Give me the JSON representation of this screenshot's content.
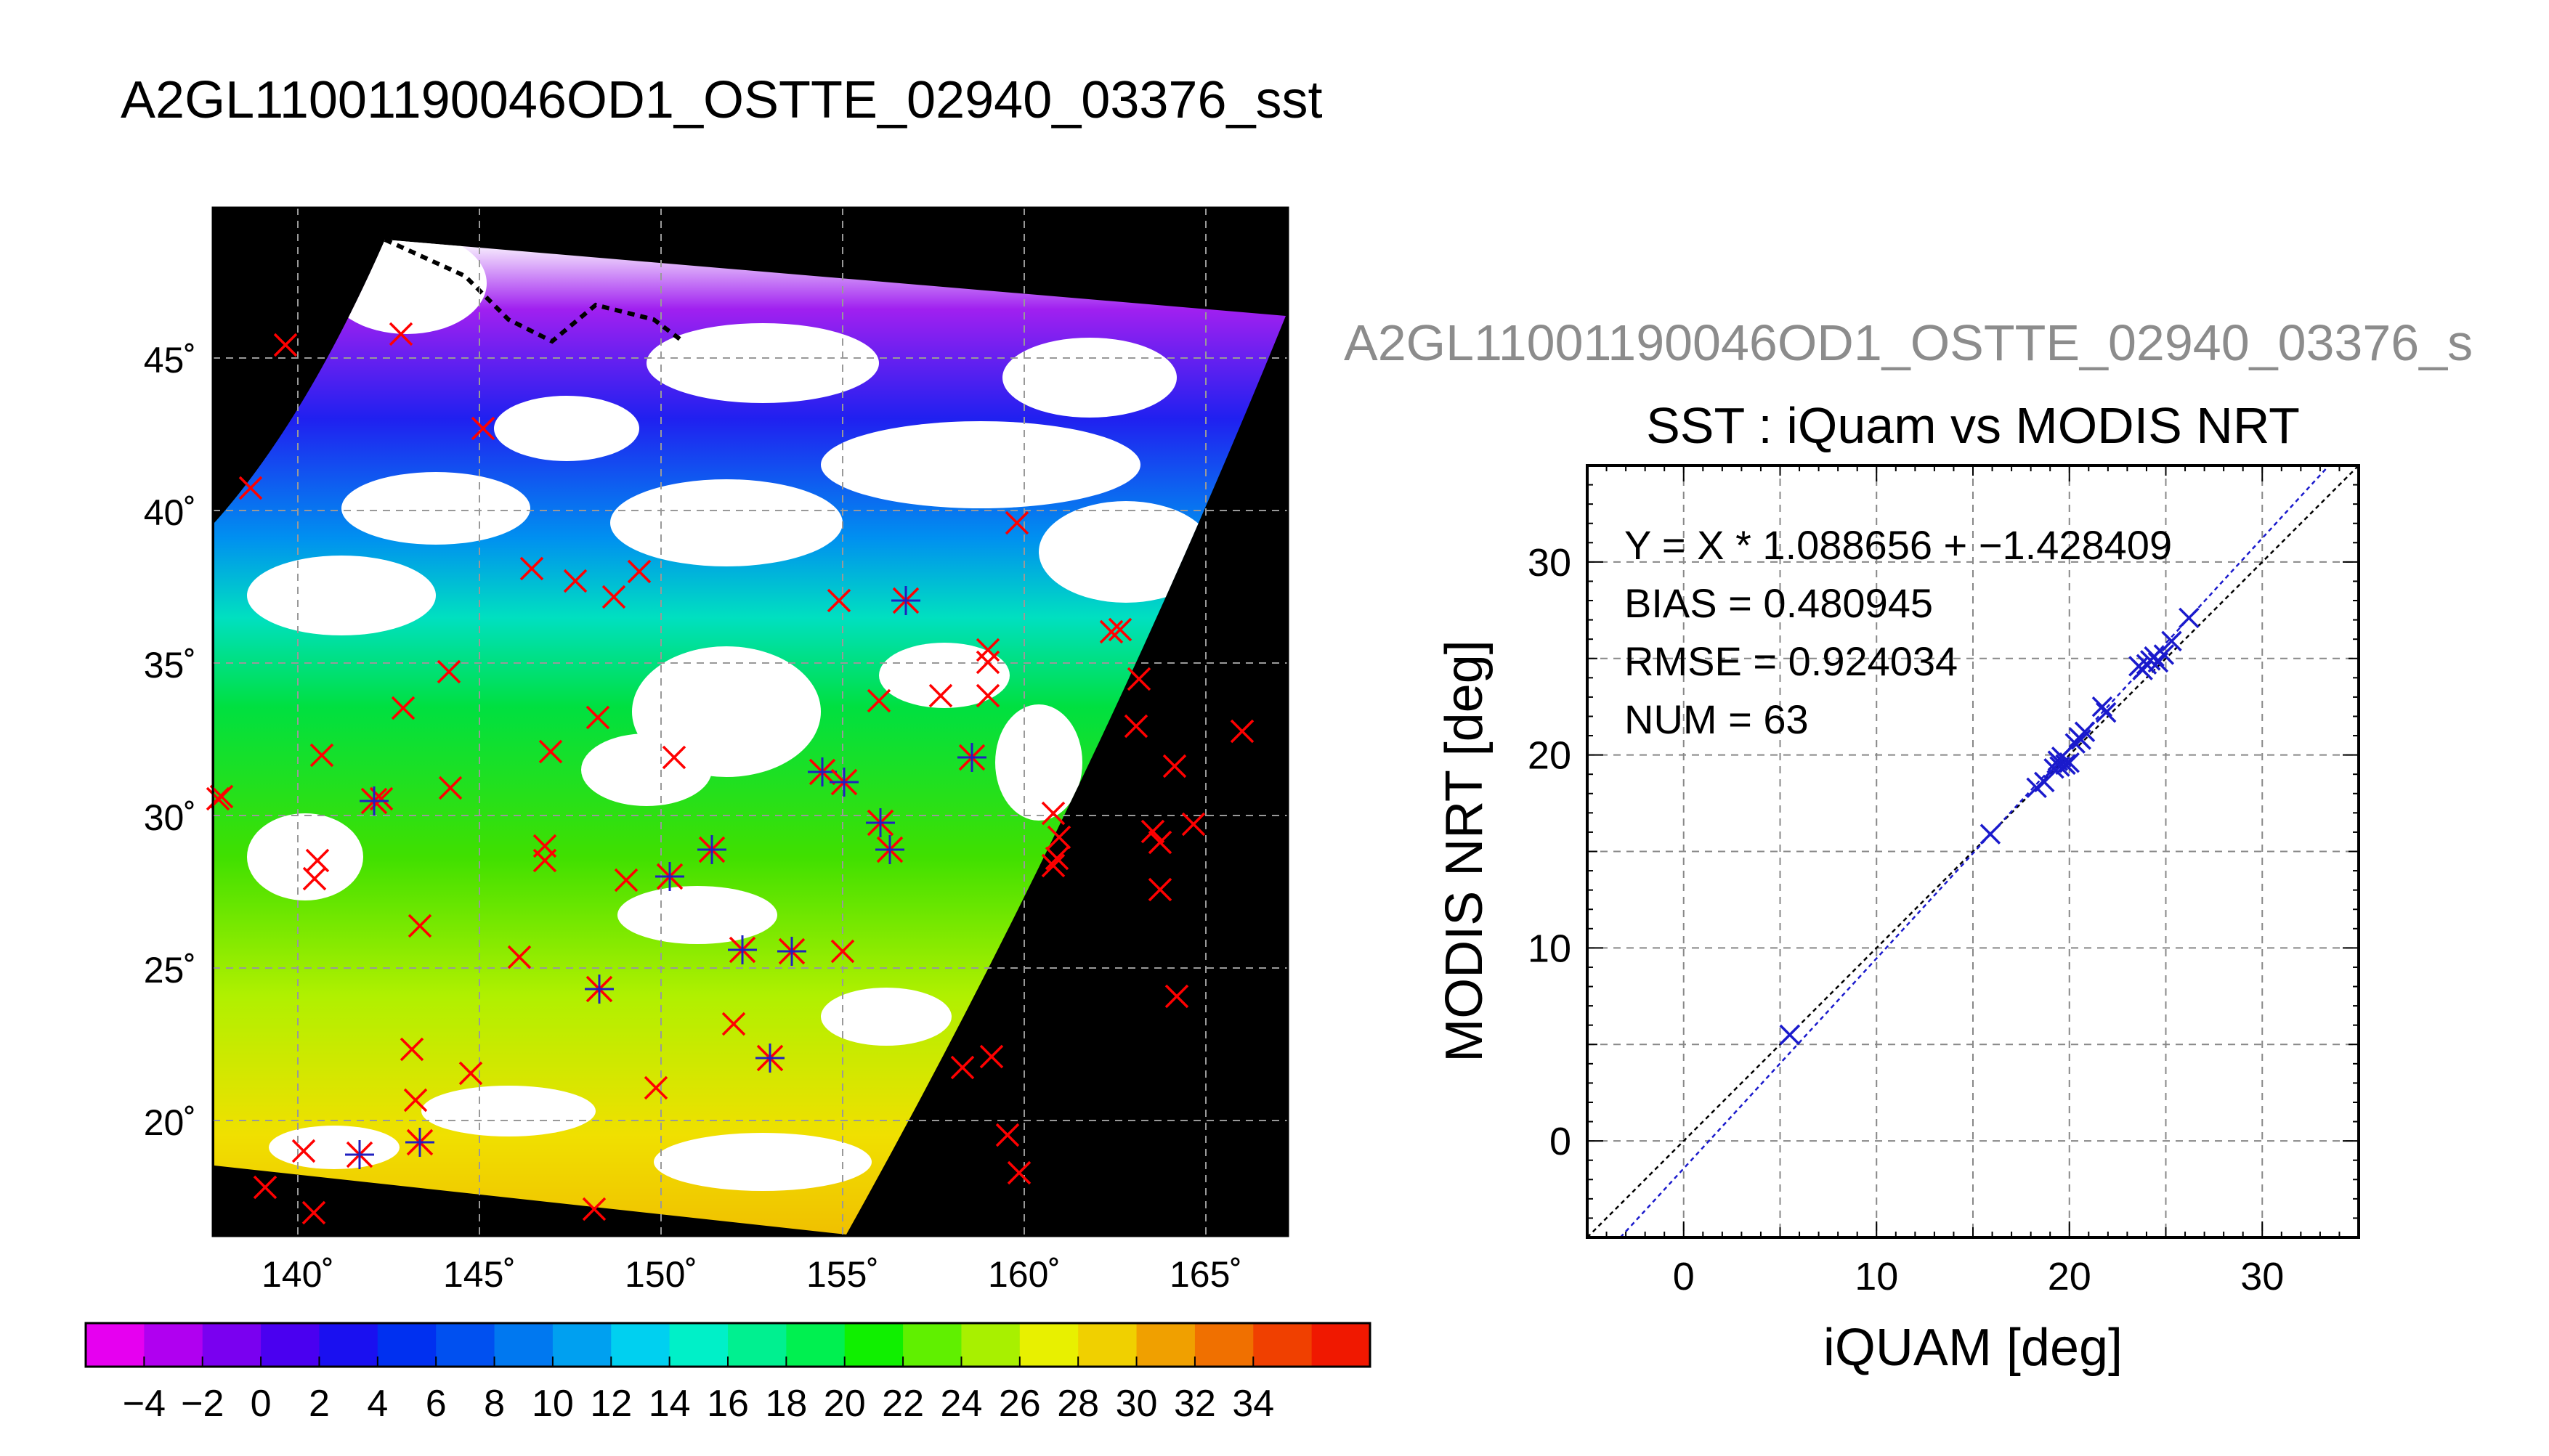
{
  "page_title": "A2GL11001190046OD1_OSTTE_02940_03376_sst",
  "map_panel": {
    "lat_ticks": [
      "45˚",
      "40˚",
      "35˚",
      "30˚",
      "25˚",
      "20˚"
    ],
    "lon_ticks": [
      "140˚",
      "145˚",
      "150˚",
      "155˚",
      "160˚",
      "165˚"
    ]
  },
  "colorbar": {
    "tick_labels": [
      "−4",
      "−2",
      "0",
      "2",
      "4",
      "6",
      "8",
      "10",
      "12",
      "14",
      "16",
      "18",
      "20",
      "22",
      "24",
      "26",
      "28",
      "30",
      "32",
      "34"
    ],
    "colors": [
      "#e600f0",
      "#b000f0",
      "#7a00f0",
      "#4a00f0",
      "#1a10f0",
      "#0030f0",
      "#0050f0",
      "#0078f0",
      "#00a0f0",
      "#00d0f0",
      "#00f0c8",
      "#00f090",
      "#00f050",
      "#10f000",
      "#60f000",
      "#a8f000",
      "#e8f000",
      "#f0d000",
      "#f0a000",
      "#f07000",
      "#f04000",
      "#f01800"
    ]
  },
  "chart_data": [
    {
      "type": "scatter",
      "title": "SST : iQuam vs MODIS NRT",
      "subtitle": "A2GL11001190046OD1_OSTTE_02940_03376_s",
      "xlabel": "iQUAM [deg]",
      "ylabel": "MODIS NRT [deg]",
      "xlim": [
        -5,
        35
      ],
      "ylim": [
        -5,
        35
      ],
      "xticks": [
        "0",
        "10",
        "20",
        "30"
      ],
      "yticks": [
        "0",
        "10",
        "20",
        "30"
      ],
      "grid": true,
      "annotations": [
        "Y = X * 1.088656 + −1.428409",
        "BIAS = 0.480945",
        "RMSE = 0.924034",
        "NUM = 63"
      ],
      "fit": {
        "slope": 1.088656,
        "intercept": -1.428409
      },
      "colors": {
        "points": "#1a1acc",
        "fit_line": "#1a1acc",
        "identity_line": "#000000"
      },
      "series": [
        {
          "x": [
            5.5,
            15.9,
            18.3,
            18.7,
            19.2,
            19.4,
            19.5,
            19.6,
            19.8,
            20.0,
            20.3,
            20.5,
            20.6,
            20.8,
            21.7,
            21.9,
            23.6,
            23.8,
            24.0,
            24.2,
            24.4,
            24.6,
            24.9,
            25.3,
            26.2
          ],
          "y": [
            5.5,
            15.9,
            18.3,
            18.6,
            19.3,
            19.7,
            19.4,
            19.9,
            19.5,
            19.6,
            20.6,
            20.9,
            20.8,
            21.2,
            22.5,
            22.2,
            24.6,
            24.4,
            24.7,
            24.9,
            25.1,
            24.8,
            25.2,
            25.9,
            27.1
          ]
        }
      ]
    }
  ]
}
